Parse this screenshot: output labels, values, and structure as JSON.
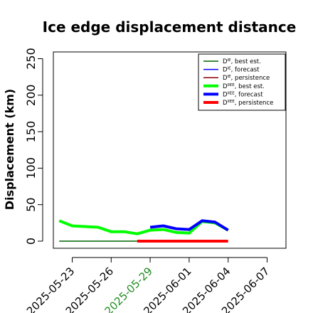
{
  "chart_data": {
    "type": "line",
    "title": "Ice edge displacement distance",
    "xlabel": "",
    "ylabel": "Displacement (km)",
    "ylim": [
      0,
      260
    ],
    "yticks": [
      0,
      50,
      100,
      150,
      200,
      250
    ],
    "xlim": [
      "2025-05-21",
      "2025-06-09"
    ],
    "xticks": [
      "2025-05-23",
      "2025-05-26",
      "2025-05-29",
      "2025-06-01",
      "2025-06-04",
      "2025-06-07"
    ],
    "highlight_xtick": "2025-05-29",
    "highlight_color": "#228b22",
    "grid": false,
    "legend_position": "top-right",
    "series": [
      {
        "name_main": "D",
        "name_sup": "IE",
        "name_rest": ", best est.",
        "color": "#006400",
        "width": 1.5,
        "x": [
          "2025-05-22",
          "2025-05-23",
          "2025-05-24",
          "2025-05-25",
          "2025-05-26",
          "2025-05-27",
          "2025-05-28"
        ],
        "y": [
          0,
          0,
          0,
          0,
          0,
          0,
          0
        ]
      },
      {
        "name_main": "D",
        "name_sup": "IE",
        "name_rest": ", forecast",
        "color": "#0000ff",
        "width": 1.5,
        "x": [],
        "y": []
      },
      {
        "name_main": "D",
        "name_sup": "IE",
        "name_rest": ", persistence",
        "color": "#8b0000",
        "width": 1.5,
        "x": [],
        "y": []
      },
      {
        "name_main": "D",
        "name_sup": "IIEE",
        "name_rest": ", best est.",
        "color": "#00ff00",
        "width": 4,
        "x": [
          "2025-05-22",
          "2025-05-23",
          "2025-05-24",
          "2025-05-25",
          "2025-05-26",
          "2025-05-27",
          "2025-05-28",
          "2025-05-29",
          "2025-05-30",
          "2025-05-31",
          "2025-06-01",
          "2025-06-02",
          "2025-06-03",
          "2025-06-04"
        ],
        "y": [
          28,
          21,
          20,
          19,
          13,
          13,
          10,
          15,
          16,
          12,
          11,
          27,
          25,
          15
        ]
      },
      {
        "name_main": "D",
        "name_sup": "IIEE",
        "name_rest": ", forecast",
        "color": "#0000ff",
        "width": 4,
        "x": [
          "2025-05-29",
          "2025-05-30",
          "2025-05-31",
          "2025-06-01",
          "2025-06-02",
          "2025-06-03",
          "2025-06-04"
        ],
        "y": [
          19,
          21,
          17,
          16,
          28,
          26,
          15
        ]
      },
      {
        "name_main": "D",
        "name_sup": "IIEE",
        "name_rest": ", persistence",
        "color": "#ff0000",
        "width": 4,
        "x": [
          "2025-05-28",
          "2025-05-29",
          "2025-05-30",
          "2025-05-31",
          "2025-06-01",
          "2025-06-02",
          "2025-06-03",
          "2025-06-04"
        ],
        "y": [
          0,
          0,
          0,
          0,
          0,
          0,
          0,
          0
        ]
      }
    ]
  }
}
